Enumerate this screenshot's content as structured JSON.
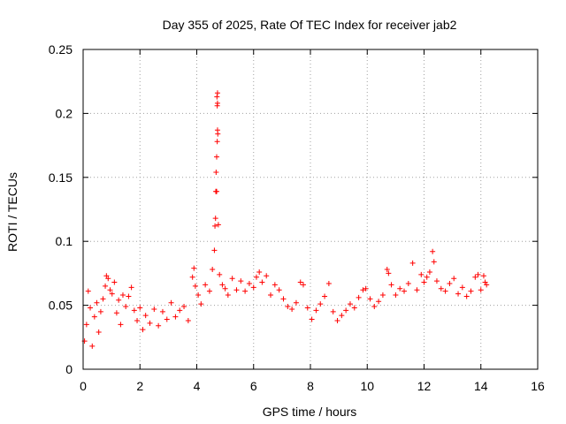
{
  "chart_data": {
    "type": "scatter",
    "title": "Day 355 of 2025, Rate Of TEC Index for receiver jab2",
    "xlabel": "GPS time / hours",
    "ylabel": "ROTI / TECUs",
    "xlim": [
      0,
      16
    ],
    "ylim": [
      0,
      0.25
    ],
    "x_ticks": [
      0,
      2,
      4,
      6,
      8,
      10,
      12,
      14,
      16
    ],
    "y_ticks": [
      0,
      0.05,
      0.1,
      0.15,
      0.2,
      0.25
    ],
    "x_tick_labels": [
      "0",
      "2",
      "4",
      "6",
      "8",
      "10",
      "12",
      "14",
      "16"
    ],
    "y_tick_labels": [
      "0",
      "0.05",
      "0.1",
      "0.15",
      "0.2",
      "0.25"
    ],
    "grid": true,
    "marker": "+",
    "marker_color": "#ff0000",
    "series": [
      {
        "name": "ROTI",
        "points": [
          [
            0.05,
            0.022
          ],
          [
            0.12,
            0.035
          ],
          [
            0.18,
            0.061
          ],
          [
            0.25,
            0.048
          ],
          [
            0.32,
            0.018
          ],
          [
            0.4,
            0.041
          ],
          [
            0.48,
            0.052
          ],
          [
            0.55,
            0.029
          ],
          [
            0.62,
            0.045
          ],
          [
            0.7,
            0.055
          ],
          [
            0.78,
            0.065
          ],
          [
            0.82,
            0.073
          ],
          [
            0.88,
            0.071
          ],
          [
            0.95,
            0.062
          ],
          [
            1.02,
            0.059
          ],
          [
            1.1,
            0.068
          ],
          [
            1.18,
            0.044
          ],
          [
            1.25,
            0.054
          ],
          [
            1.32,
            0.035
          ],
          [
            1.4,
            0.058
          ],
          [
            1.5,
            0.049
          ],
          [
            1.6,
            0.057
          ],
          [
            1.7,
            0.064
          ],
          [
            1.8,
            0.046
          ],
          [
            1.9,
            0.038
          ],
          [
            2.0,
            0.048
          ],
          [
            2.1,
            0.031
          ],
          [
            2.2,
            0.042
          ],
          [
            2.35,
            0.036
          ],
          [
            2.5,
            0.047
          ],
          [
            2.65,
            0.034
          ],
          [
            2.8,
            0.045
          ],
          [
            2.95,
            0.039
          ],
          [
            3.1,
            0.052
          ],
          [
            3.25,
            0.041
          ],
          [
            3.4,
            0.046
          ],
          [
            3.55,
            0.049
          ],
          [
            3.7,
            0.038
          ],
          [
            3.85,
            0.072
          ],
          [
            3.9,
            0.079
          ],
          [
            3.95,
            0.065
          ],
          [
            4.05,
            0.058
          ],
          [
            4.15,
            0.051
          ],
          [
            4.3,
            0.066
          ],
          [
            4.45,
            0.061
          ],
          [
            4.55,
            0.078
          ],
          [
            4.62,
            0.093
          ],
          [
            4.64,
            0.112
          ],
          [
            4.66,
            0.118
          ],
          [
            4.67,
            0.139
          ],
          [
            4.68,
            0.154
          ],
          [
            4.7,
            0.166
          ],
          [
            4.72,
            0.178
          ],
          [
            4.73,
            0.187
          ],
          [
            4.74,
            0.184
          ],
          [
            4.72,
            0.206
          ],
          [
            4.73,
            0.208
          ],
          [
            4.71,
            0.213
          ],
          [
            4.73,
            0.216
          ],
          [
            4.7,
            0.139
          ],
          [
            4.76,
            0.113
          ],
          [
            4.8,
            0.074
          ],
          [
            4.9,
            0.066
          ],
          [
            5.0,
            0.063
          ],
          [
            5.1,
            0.058
          ],
          [
            5.25,
            0.071
          ],
          [
            5.4,
            0.062
          ],
          [
            5.55,
            0.069
          ],
          [
            5.7,
            0.061
          ],
          [
            5.85,
            0.067
          ],
          [
            6.0,
            0.064
          ],
          [
            6.1,
            0.072
          ],
          [
            6.2,
            0.076
          ],
          [
            6.3,
            0.068
          ],
          [
            6.45,
            0.073
          ],
          [
            6.6,
            0.058
          ],
          [
            6.75,
            0.066
          ],
          [
            6.9,
            0.062
          ],
          [
            7.05,
            0.055
          ],
          [
            7.2,
            0.049
          ],
          [
            7.35,
            0.047
          ],
          [
            7.5,
            0.052
          ],
          [
            7.65,
            0.068
          ],
          [
            7.75,
            0.066
          ],
          [
            7.9,
            0.048
          ],
          [
            8.05,
            0.039
          ],
          [
            8.2,
            0.046
          ],
          [
            8.35,
            0.051
          ],
          [
            8.5,
            0.057
          ],
          [
            8.65,
            0.067
          ],
          [
            8.8,
            0.045
          ],
          [
            8.95,
            0.038
          ],
          [
            9.1,
            0.042
          ],
          [
            9.25,
            0.046
          ],
          [
            9.4,
            0.051
          ],
          [
            9.55,
            0.048
          ],
          [
            9.7,
            0.056
          ],
          [
            9.85,
            0.062
          ],
          [
            9.95,
            0.063
          ],
          [
            10.1,
            0.055
          ],
          [
            10.25,
            0.049
          ],
          [
            10.4,
            0.053
          ],
          [
            10.55,
            0.058
          ],
          [
            10.7,
            0.078
          ],
          [
            10.75,
            0.075
          ],
          [
            10.85,
            0.066
          ],
          [
            11.0,
            0.058
          ],
          [
            11.15,
            0.063
          ],
          [
            11.3,
            0.061
          ],
          [
            11.45,
            0.067
          ],
          [
            11.6,
            0.083
          ],
          [
            11.75,
            0.062
          ],
          [
            11.9,
            0.074
          ],
          [
            12.0,
            0.068
          ],
          [
            12.1,
            0.072
          ],
          [
            12.2,
            0.076
          ],
          [
            12.3,
            0.092
          ],
          [
            12.35,
            0.084
          ],
          [
            12.45,
            0.069
          ],
          [
            12.6,
            0.063
          ],
          [
            12.75,
            0.061
          ],
          [
            12.9,
            0.067
          ],
          [
            13.05,
            0.071
          ],
          [
            13.2,
            0.059
          ],
          [
            13.35,
            0.064
          ],
          [
            13.5,
            0.057
          ],
          [
            13.65,
            0.061
          ],
          [
            13.8,
            0.072
          ],
          [
            13.9,
            0.074
          ],
          [
            14.0,
            0.062
          ],
          [
            14.1,
            0.073
          ],
          [
            14.15,
            0.068
          ],
          [
            14.2,
            0.066
          ]
        ]
      }
    ]
  }
}
